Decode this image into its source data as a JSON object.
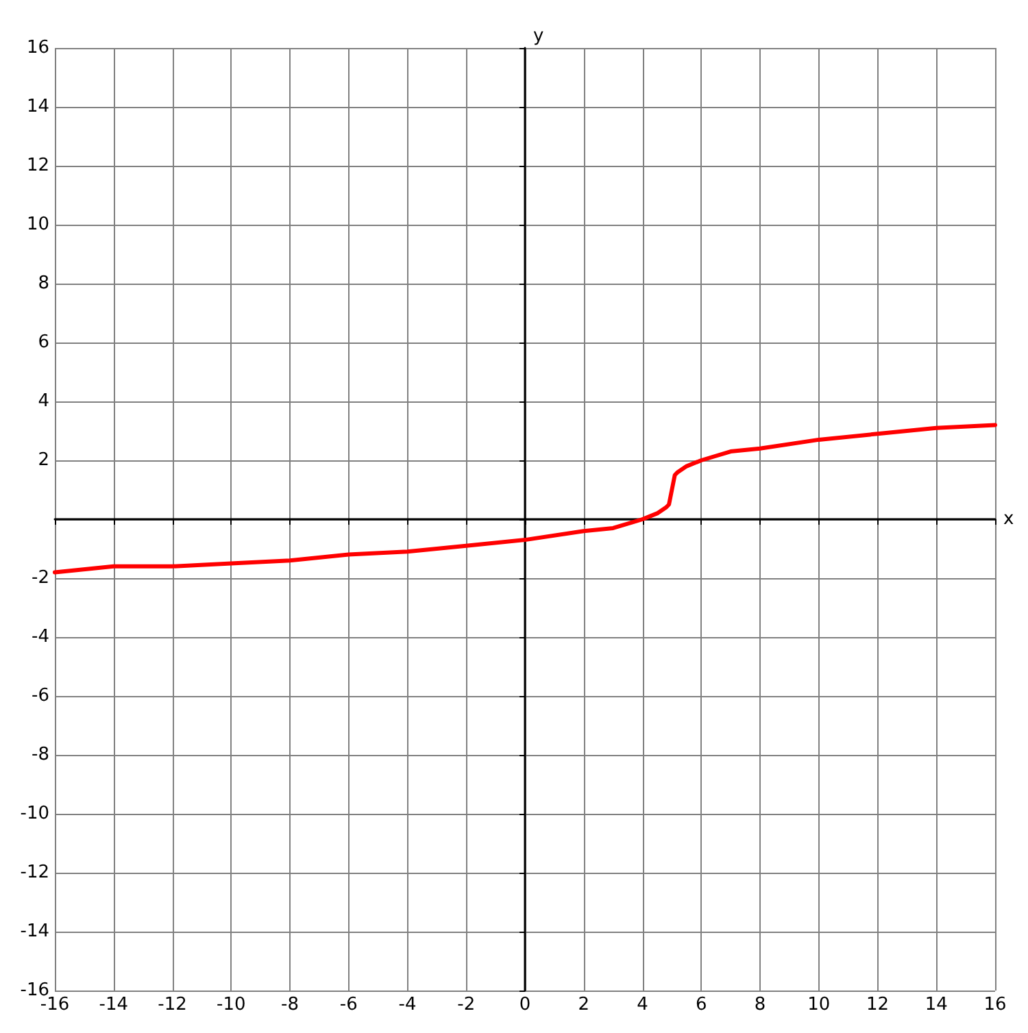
{
  "chart_data": {
    "type": "line",
    "xlabel": "x",
    "ylabel": "y",
    "grid": true,
    "marker": "none",
    "line_style": "solid",
    "xlim": [
      -16,
      16
    ],
    "ylim": [
      -16,
      16
    ],
    "xticks": [
      -16,
      -14,
      -12,
      -10,
      -8,
      -6,
      -4,
      -2,
      0,
      2,
      4,
      6,
      8,
      10,
      12,
      14,
      16
    ],
    "yticks": [
      -16,
      -14,
      -12,
      -10,
      -8,
      -6,
      -4,
      -2,
      {
        "value": 0,
        "label": null
      },
      2,
      4,
      6,
      8,
      10,
      12,
      14,
      16
    ],
    "series": [
      {
        "color": "#ff0000",
        "x": [
          -16,
          -14,
          -12,
          -10,
          -8,
          -6,
          -4,
          -2,
          0,
          2,
          3,
          4,
          4.5,
          4.8,
          4.9,
          5,
          5.1,
          5.2,
          5.5,
          6,
          7,
          8,
          10,
          12,
          14,
          16
        ],
        "values": [
          -1.8,
          -1.6,
          -1.6,
          -1.5,
          -1.4,
          -1.2,
          -1.1,
          -0.9,
          -0.7,
          -0.4,
          -0.3,
          0,
          0.2,
          0.4,
          0.5,
          1,
          1.5,
          1.6,
          1.8,
          2,
          2.3,
          2.4,
          2.7,
          2.9,
          3.1,
          3.2
        ]
      }
    ]
  }
}
